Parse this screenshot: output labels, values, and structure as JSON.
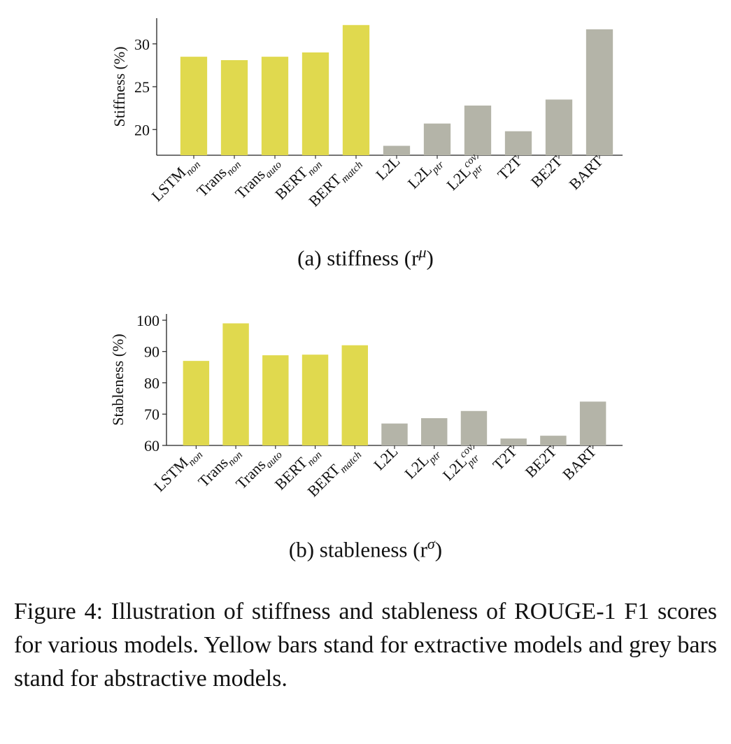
{
  "chart_data": [
    {
      "type": "bar",
      "ylabel": "Stiffness (%)",
      "categories": [
        "LSTM_non",
        "Trans_non",
        "Trans_auto",
        "BERT_non",
        "BERT_match",
        "L2L",
        "L2L_ptr",
        "L2L^cov_ptr",
        "T2T",
        "BE2T",
        "BART"
      ],
      "values": [
        28.5,
        28.1,
        28.5,
        29.0,
        32.2,
        18.1,
        20.7,
        22.8,
        19.8,
        23.5,
        31.7
      ],
      "ylim": [
        17,
        33
      ],
      "yticks": [
        20,
        25,
        30
      ],
      "grid": false,
      "colors": [
        "#e0d94e",
        "#e0d94e",
        "#e0d94e",
        "#e0d94e",
        "#e0d94e",
        "#b4b4a8",
        "#b4b4a8",
        "#b4b4a8",
        "#b4b4a8",
        "#b4b4a8",
        "#b4b4a8"
      ]
    },
    {
      "type": "bar",
      "ylabel": "Stableness (%)",
      "categories": [
        "LSTM_non",
        "Trans_non",
        "Trans_auto",
        "BERT_non",
        "BERT_match",
        "L2L",
        "L2L_ptr",
        "L2L^cov_ptr",
        "T2T",
        "BE2T",
        "BART"
      ],
      "values": [
        87.0,
        99.0,
        88.8,
        89.0,
        92.0,
        67.0,
        68.7,
        71.0,
        62.2,
        63.1,
        74.0
      ],
      "ylim": [
        60,
        102
      ],
      "yticks": [
        60,
        70,
        80,
        90,
        100
      ],
      "grid": false,
      "colors": [
        "#e0d94e",
        "#e0d94e",
        "#e0d94e",
        "#e0d94e",
        "#e0d94e",
        "#b4b4a8",
        "#b4b4a8",
        "#b4b4a8",
        "#b4b4a8",
        "#b4b4a8",
        "#b4b4a8"
      ]
    }
  ],
  "tick_labels": [
    {
      "base": "LSTM",
      "sub": "non",
      "sup": ""
    },
    {
      "base": "Trans",
      "sub": "non",
      "sup": ""
    },
    {
      "base": "Trans",
      "sub": "auto",
      "sup": ""
    },
    {
      "base": "BERT",
      "sub": "non",
      "sup": ""
    },
    {
      "base": "BERT",
      "sub": "match",
      "sup": ""
    },
    {
      "base": "L2L",
      "sub": "",
      "sup": ""
    },
    {
      "base": "L2L",
      "sub": "ptr",
      "sup": ""
    },
    {
      "base": "L2L",
      "sub": "ptr",
      "sup": "cov"
    },
    {
      "base": "T2T",
      "sub": "",
      "sup": ""
    },
    {
      "base": "BE2T",
      "sub": "",
      "sup": ""
    },
    {
      "base": "BART",
      "sub": "",
      "sup": ""
    }
  ],
  "subcaptions": {
    "a_text": "(a) stiffness (r",
    "a_sup": "μ",
    "a_end": ")",
    "b_text": "(b) stableness (r",
    "b_sup": "σ",
    "b_end": ")"
  },
  "figure_caption": "Figure 4: Illustration of stiffness and stableness of ROUGE-1 F1 scores for various models. Yellow bars stand for extractive models and grey bars stand for abstractive models."
}
